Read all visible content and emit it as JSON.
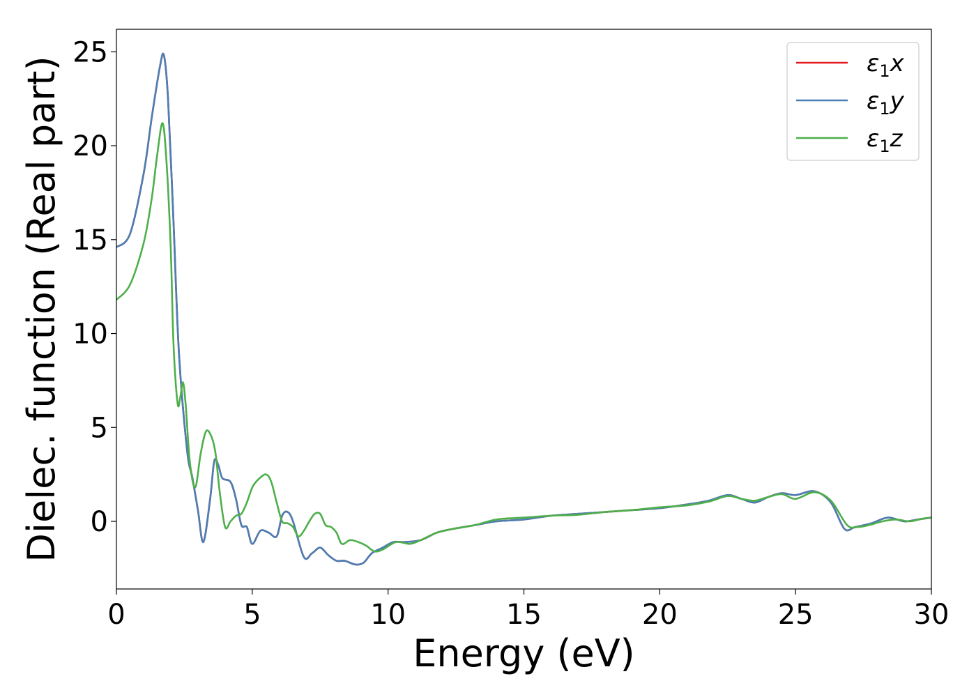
{
  "chart_data": {
    "type": "line",
    "xlabel": "Energy (eV)",
    "ylabel": "Dielec. function (Real part)",
    "xlim": [
      0,
      30
    ],
    "ylim": [
      -3.6,
      26.2
    ],
    "xticks": [
      0,
      5,
      10,
      15,
      20,
      25,
      30
    ],
    "xtick_labels": [
      "0",
      "5",
      "10",
      "15",
      "20",
      "25",
      "30"
    ],
    "yticks": [
      0,
      5,
      10,
      15,
      20,
      25
    ],
    "ytick_labels": [
      "0",
      "5",
      "10",
      "15",
      "20",
      "25"
    ],
    "grid": false,
    "legend_position": "top-right",
    "series": [
      {
        "name": "ε₁x",
        "legend_base": "ε",
        "legend_sub": "1",
        "legend_suffix": "x",
        "color": "#e41a1c",
        "x": [
          0,
          0.5,
          1.0,
          1.3,
          1.6,
          1.75,
          1.9,
          2.1,
          2.3,
          2.6,
          2.8,
          3.0,
          3.2,
          3.45,
          3.6,
          3.75,
          3.9,
          4.2,
          4.4,
          4.6,
          4.8,
          5.0,
          5.3,
          5.6,
          5.9,
          6.1,
          6.3,
          6.5,
          6.9,
          7.2,
          7.5,
          7.8,
          8.1,
          8.4,
          8.8,
          9.1,
          9.4,
          9.8,
          10.2,
          10.6,
          11.2,
          11.8,
          12.4,
          13.2,
          14.0,
          15.0,
          16.0,
          17.0,
          18.0,
          19.0,
          20.0,
          21.0,
          21.8,
          22.5,
          23.0,
          23.5,
          24.0,
          24.5,
          25.0,
          25.7,
          26.3,
          26.8,
          27.2,
          27.8,
          28.4,
          29.0,
          29.5,
          30.0
        ],
        "y": [
          14.6,
          15.3,
          18.5,
          21.5,
          24.2,
          24.8,
          22.5,
          16.0,
          9.0,
          3.8,
          2.3,
          0.6,
          -1.1,
          1.2,
          3.2,
          3.0,
          2.3,
          2.1,
          1.2,
          -0.2,
          -0.3,
          -1.2,
          -0.5,
          -0.6,
          -0.8,
          0.3,
          0.5,
          0.0,
          -1.9,
          -1.7,
          -1.4,
          -1.8,
          -2.1,
          -2.1,
          -2.3,
          -2.2,
          -1.7,
          -1.4,
          -1.1,
          -1.1,
          -1.0,
          -0.6,
          -0.4,
          -0.2,
          0.0,
          0.1,
          0.3,
          0.4,
          0.5,
          0.6,
          0.7,
          0.9,
          1.1,
          1.4,
          1.2,
          1.0,
          1.3,
          1.5,
          1.4,
          1.6,
          1.0,
          -0.4,
          -0.3,
          -0.1,
          0.2,
          0.0,
          0.1,
          0.2
        ]
      },
      {
        "name": "ε₁y",
        "legend_base": "ε",
        "legend_sub": "1",
        "legend_suffix": "y",
        "color": "#4a7fb5",
        "x": [
          0,
          0.5,
          1.0,
          1.3,
          1.6,
          1.75,
          1.9,
          2.1,
          2.3,
          2.6,
          2.8,
          3.0,
          3.2,
          3.45,
          3.6,
          3.75,
          3.9,
          4.2,
          4.4,
          4.6,
          4.8,
          5.0,
          5.3,
          5.6,
          5.9,
          6.1,
          6.3,
          6.5,
          6.9,
          7.2,
          7.5,
          7.8,
          8.1,
          8.4,
          8.8,
          9.1,
          9.4,
          9.8,
          10.2,
          10.6,
          11.2,
          11.8,
          12.4,
          13.2,
          14.0,
          15.0,
          16.0,
          17.0,
          18.0,
          19.0,
          20.0,
          21.0,
          21.8,
          22.5,
          23.0,
          23.5,
          24.0,
          24.5,
          25.0,
          25.7,
          26.3,
          26.8,
          27.2,
          27.8,
          28.4,
          29.0,
          29.5,
          30.0
        ],
        "y": [
          14.6,
          15.3,
          18.5,
          21.5,
          24.2,
          24.8,
          22.5,
          16.0,
          9.0,
          3.8,
          2.3,
          0.6,
          -1.1,
          1.2,
          3.2,
          3.0,
          2.3,
          2.1,
          1.2,
          -0.2,
          -0.3,
          -1.2,
          -0.5,
          -0.6,
          -0.8,
          0.3,
          0.5,
          0.0,
          -1.9,
          -1.7,
          -1.4,
          -1.8,
          -2.1,
          -2.1,
          -2.3,
          -2.2,
          -1.7,
          -1.4,
          -1.1,
          -1.1,
          -1.0,
          -0.6,
          -0.4,
          -0.2,
          0.0,
          0.1,
          0.3,
          0.4,
          0.5,
          0.6,
          0.7,
          0.9,
          1.1,
          1.4,
          1.2,
          1.0,
          1.3,
          1.5,
          1.4,
          1.6,
          1.0,
          -0.4,
          -0.3,
          -0.1,
          0.2,
          0.0,
          0.1,
          0.2
        ]
      },
      {
        "name": "ε₁z",
        "legend_base": "ε",
        "legend_sub": "1",
        "legend_suffix": "z",
        "color": "#4daf4a",
        "x": [
          0,
          0.5,
          1.0,
          1.3,
          1.5,
          1.7,
          1.85,
          2.0,
          2.1,
          2.25,
          2.35,
          2.45,
          2.55,
          2.7,
          2.9,
          3.1,
          3.3,
          3.5,
          3.65,
          3.8,
          4.0,
          4.2,
          4.4,
          4.6,
          4.8,
          5.0,
          5.2,
          5.5,
          5.7,
          5.9,
          6.1,
          6.3,
          6.5,
          6.7,
          6.9,
          7.1,
          7.3,
          7.5,
          7.7,
          7.9,
          8.1,
          8.3,
          8.6,
          8.9,
          9.2,
          9.5,
          9.8,
          10.3,
          10.8,
          11.2,
          11.8,
          12.4,
          13.2,
          14.0,
          15.0,
          16.0,
          17.0,
          18.0,
          19.0,
          20.0,
          21.0,
          21.8,
          22.5,
          23.0,
          23.5,
          24.0,
          24.5,
          25.0,
          25.7,
          26.3,
          26.9,
          27.3,
          27.7,
          28.2,
          28.7,
          29.2,
          29.7,
          30.0
        ],
        "y": [
          11.8,
          12.6,
          14.8,
          17.2,
          19.5,
          21.2,
          19.0,
          14.5,
          9.5,
          6.3,
          6.6,
          7.4,
          6.2,
          3.2,
          1.8,
          3.6,
          4.8,
          4.5,
          3.6,
          1.6,
          -0.3,
          0.0,
          0.3,
          0.4,
          1.0,
          1.8,
          2.2,
          2.5,
          2.1,
          1.0,
          0.0,
          -0.1,
          -0.3,
          -0.8,
          -0.5,
          0.0,
          0.4,
          0.4,
          -0.2,
          -0.3,
          -0.6,
          -1.2,
          -1.0,
          -1.1,
          -1.3,
          -1.6,
          -1.5,
          -1.1,
          -1.2,
          -1.0,
          -0.6,
          -0.4,
          -0.2,
          0.1,
          0.2,
          0.3,
          0.35,
          0.5,
          0.6,
          0.75,
          0.85,
          1.05,
          1.35,
          1.2,
          1.1,
          1.3,
          1.45,
          1.2,
          1.55,
          1.1,
          -0.2,
          -0.3,
          -0.2,
          0.0,
          0.1,
          0.0,
          0.15,
          0.2
        ]
      }
    ]
  }
}
